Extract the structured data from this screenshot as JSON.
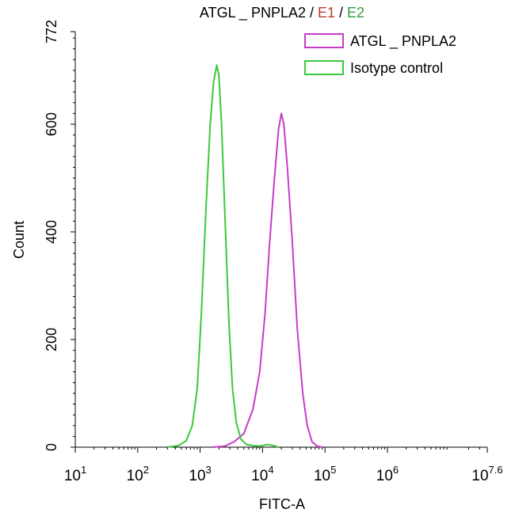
{
  "chart_data": {
    "type": "line",
    "title_parts": [
      {
        "text": "ATGL _ PNPLA2 ",
        "color": "#000000"
      },
      {
        "text": "/ ",
        "color": "#000000"
      },
      {
        "text": "E1",
        "color": "#c0392b"
      },
      {
        "text": " / ",
        "color": "#000000"
      },
      {
        "text": "E2",
        "color": "#2e9e3e"
      }
    ],
    "xlabel": "FITC-A",
    "ylabel": "Count",
    "x_scale": "log",
    "xlim": [
      10,
      39810717
    ],
    "ylim": [
      0,
      772
    ],
    "x_ticks": [
      {
        "value": 10,
        "base": "10",
        "exp": "1"
      },
      {
        "value": 100,
        "base": "10",
        "exp": "2"
      },
      {
        "value": 1000,
        "base": "10",
        "exp": "3"
      },
      {
        "value": 10000,
        "base": "10",
        "exp": "4"
      },
      {
        "value": 100000,
        "base": "10",
        "exp": "5"
      },
      {
        "value": 1000000,
        "base": "10",
        "exp": "6"
      },
      {
        "value": 39810717,
        "base": "10",
        "exp": "7.6"
      }
    ],
    "y_ticks": [
      {
        "value": 0,
        "label": "0"
      },
      {
        "value": 200,
        "label": "200"
      },
      {
        "value": 400,
        "label": "400"
      },
      {
        "value": 600,
        "label": "600"
      },
      {
        "value": 772,
        "label": "772"
      }
    ],
    "legend_position": "top-right",
    "series": [
      {
        "name": "ATGL _ PNPLA2",
        "color": "#c83cc8",
        "points": [
          [
            1600,
            0
          ],
          [
            2500,
            2
          ],
          [
            3500,
            10
          ],
          [
            5000,
            25
          ],
          [
            7000,
            70
          ],
          [
            9000,
            140
          ],
          [
            11000,
            250
          ],
          [
            13000,
            380
          ],
          [
            15500,
            500
          ],
          [
            18000,
            590
          ],
          [
            20000,
            620
          ],
          [
            22000,
            600
          ],
          [
            25000,
            520
          ],
          [
            30000,
            380
          ],
          [
            36000,
            220
          ],
          [
            44000,
            100
          ],
          [
            52000,
            40
          ],
          [
            62000,
            10
          ],
          [
            75000,
            2
          ],
          [
            90000,
            0
          ]
        ]
      },
      {
        "name": "Isotype control",
        "color": "#3cc83c",
        "points": [
          [
            300,
            0
          ],
          [
            450,
            3
          ],
          [
            600,
            12
          ],
          [
            750,
            40
          ],
          [
            900,
            110
          ],
          [
            1050,
            250
          ],
          [
            1250,
            450
          ],
          [
            1450,
            600
          ],
          [
            1650,
            680
          ],
          [
            1850,
            710
          ],
          [
            2000,
            690
          ],
          [
            2200,
            600
          ],
          [
            2500,
            430
          ],
          [
            2900,
            230
          ],
          [
            3300,
            110
          ],
          [
            3800,
            45
          ],
          [
            4500,
            15
          ],
          [
            5500,
            5
          ],
          [
            7000,
            3
          ],
          [
            9000,
            2
          ],
          [
            12000,
            5
          ],
          [
            15000,
            3
          ],
          [
            18000,
            0
          ]
        ]
      }
    ]
  }
}
